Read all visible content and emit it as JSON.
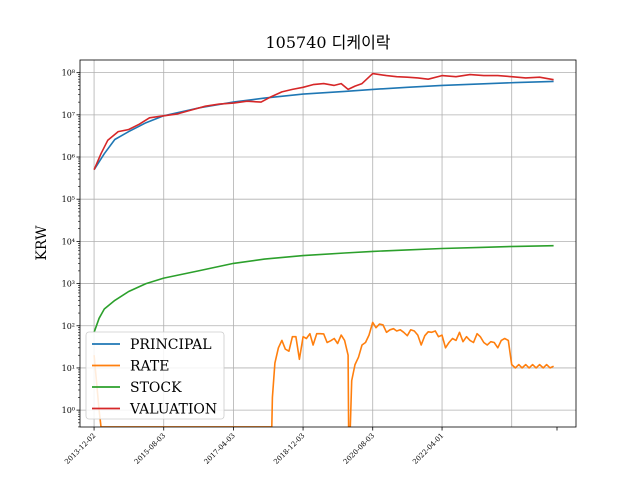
{
  "chart_data": {
    "type": "line",
    "title": "105740 디케이락",
    "xlabel": "",
    "ylabel": "KRW",
    "y_scale": "log",
    "grid": true,
    "legend_position": "lower-left",
    "xlim": [
      "2013-08-01",
      "2025-06-15"
    ],
    "ylim_exponent": [
      -0.4,
      8.3
    ],
    "x_ticks": [
      "2013-12-02",
      "2015-08-03",
      "2017-04-03",
      "2018-12-03",
      "2020-08-03",
      "2022-04-01"
    ],
    "y_ticks": [
      {
        "exp": 0,
        "label": "10⁰"
      },
      {
        "exp": 1,
        "label": "10¹"
      },
      {
        "exp": 2,
        "label": "10²"
      },
      {
        "exp": 3,
        "label": "10³"
      },
      {
        "exp": 4,
        "label": "10⁴"
      },
      {
        "exp": 5,
        "label": "10⁵"
      },
      {
        "exp": 6,
        "label": "10⁶"
      },
      {
        "exp": 7,
        "label": "10⁷"
      },
      {
        "exp": 8,
        "label": "10⁸"
      }
    ],
    "series": [
      {
        "name": "PRINCIPAL",
        "color": "#1f77b4",
        "x": [
          "2013-12-02",
          "2014-03-01",
          "2014-06-01",
          "2014-10-01",
          "2015-03-01",
          "2015-08-03",
          "2016-06-01",
          "2017-04-03",
          "2018-01-01",
          "2018-12-03",
          "2019-12-01",
          "2020-08-03",
          "2021-06-01",
          "2022-04-01",
          "2023-03-01",
          "2024-01-01",
          "2024-12-01"
        ],
        "y": [
          500000,
          1200000,
          2600000,
          4000000,
          6500000,
          9500000,
          14500000,
          20000000,
          25000000,
          31000000,
          36000000,
          40000000,
          45000000,
          50000000,
          54000000,
          58000000,
          62000000
        ]
      },
      {
        "name": "RATE",
        "color": "#ff7f0e",
        "x": [
          "2013-12-02",
          "2014-01-15",
          "2014-02-01",
          "2018-03-05",
          "2018-03-10",
          "2018-04-01",
          "2018-05-01",
          "2018-06-01",
          "2018-07-01",
          "2018-08-01",
          "2018-09-01",
          "2018-10-01",
          "2018-11-01",
          "2018-12-03",
          "2019-01-01",
          "2019-02-01",
          "2019-03-01",
          "2019-04-01",
          "2019-05-01",
          "2019-06-01",
          "2019-07-01",
          "2019-08-01",
          "2019-09-01",
          "2019-10-01",
          "2019-11-01",
          "2019-12-01",
          "2020-01-01",
          "2020-01-05",
          "2020-01-20",
          "2020-02-01",
          "2020-03-01",
          "2020-04-01",
          "2020-05-01",
          "2020-06-01",
          "2020-07-01",
          "2020-08-03",
          "2020-09-01",
          "2020-10-01",
          "2020-11-01",
          "2020-12-01",
          "2021-01-01",
          "2021-02-01",
          "2021-03-01",
          "2021-04-01",
          "2021-05-01",
          "2021-06-01",
          "2021-07-01",
          "2021-08-01",
          "2021-09-01",
          "2021-10-01",
          "2021-11-01",
          "2021-12-01",
          "2022-01-01",
          "2022-02-01",
          "2022-03-01",
          "2022-04-01",
          "2022-05-01",
          "2022-06-01",
          "2022-07-01",
          "2022-08-01",
          "2022-09-01",
          "2022-10-01",
          "2022-11-01",
          "2022-12-01",
          "2023-01-01",
          "2023-02-01",
          "2023-03-01",
          "2023-04-01",
          "2023-05-01",
          "2023-06-01",
          "2023-07-01",
          "2023-08-01",
          "2023-09-01",
          "2023-10-01",
          "2023-11-01",
          "2023-12-01",
          "2024-01-01",
          "2024-02-01",
          "2024-03-01",
          "2024-04-01",
          "2024-05-01",
          "2024-06-01",
          "2024-07-01",
          "2024-08-01",
          "2024-09-01",
          "2024-10-01",
          "2024-11-01",
          "2024-12-01"
        ],
        "y": [
          20,
          1,
          0.4,
          0.4,
          2,
          13,
          30,
          45,
          28,
          25,
          55,
          55,
          16,
          55,
          50,
          65,
          35,
          65,
          65,
          64,
          40,
          44,
          50,
          38,
          60,
          45,
          20,
          0.4,
          0.4,
          5,
          12,
          18,
          35,
          40,
          60,
          120,
          90,
          110,
          105,
          70,
          80,
          85,
          75,
          80,
          70,
          58,
          80,
          75,
          60,
          35,
          58,
          72,
          70,
          75,
          55,
          60,
          30,
          40,
          50,
          45,
          70,
          42,
          55,
          45,
          40,
          65,
          55,
          40,
          35,
          42,
          40,
          30,
          45,
          50,
          45,
          12,
          10,
          12,
          10,
          12,
          10,
          12,
          10,
          12,
          10,
          12,
          10,
          11
        ]
      },
      {
        "name": "STOCK",
        "color": "#2ca02c",
        "x": [
          "2013-12-02",
          "2014-01-15",
          "2014-03-01",
          "2014-06-01",
          "2014-10-01",
          "2015-03-01",
          "2015-08-03",
          "2016-06-01",
          "2017-04-03",
          "2018-01-01",
          "2018-12-03",
          "2019-12-01",
          "2020-08-03",
          "2021-06-01",
          "2022-04-01",
          "2023-03-01",
          "2024-01-01",
          "2024-12-01"
        ],
        "y": [
          70,
          150,
          250,
          400,
          650,
          1000,
          1350,
          2000,
          3000,
          3800,
          4600,
          5300,
          5800,
          6300,
          6800,
          7200,
          7600,
          7900
        ]
      },
      {
        "name": "VALUATION",
        "color": "#d62728",
        "x": [
          "2013-12-02",
          "2014-02-01",
          "2014-04-01",
          "2014-07-01",
          "2014-10-01",
          "2015-01-01",
          "2015-04-01",
          "2015-08-03",
          "2015-12-01",
          "2016-04-01",
          "2016-08-01",
          "2016-12-01",
          "2017-04-03",
          "2017-08-01",
          "2017-12-01",
          "2018-03-01",
          "2018-06-01",
          "2018-09-01",
          "2018-12-03",
          "2019-03-01",
          "2019-06-01",
          "2019-09-01",
          "2019-11-01",
          "2020-01-01",
          "2020-03-01",
          "2020-05-01",
          "2020-08-03",
          "2020-10-01",
          "2020-12-01",
          "2021-03-01",
          "2021-06-01",
          "2021-09-01",
          "2021-12-01",
          "2022-04-01",
          "2022-08-01",
          "2022-12-01",
          "2023-04-01",
          "2023-08-01",
          "2023-12-01",
          "2024-04-01",
          "2024-08-01",
          "2024-12-01"
        ],
        "y": [
          500000,
          1200000,
          2500000,
          4000000,
          4500000,
          6000000,
          8500000,
          9500000,
          10500000,
          13000000,
          16000000,
          18000000,
          19000000,
          21000000,
          20000000,
          27000000,
          35000000,
          40000000,
          45000000,
          52000000,
          55000000,
          50000000,
          55000000,
          40000000,
          48000000,
          55000000,
          95000000,
          90000000,
          85000000,
          80000000,
          78000000,
          75000000,
          70000000,
          85000000,
          80000000,
          90000000,
          85000000,
          85000000,
          80000000,
          75000000,
          78000000,
          68000000
        ]
      }
    ]
  }
}
